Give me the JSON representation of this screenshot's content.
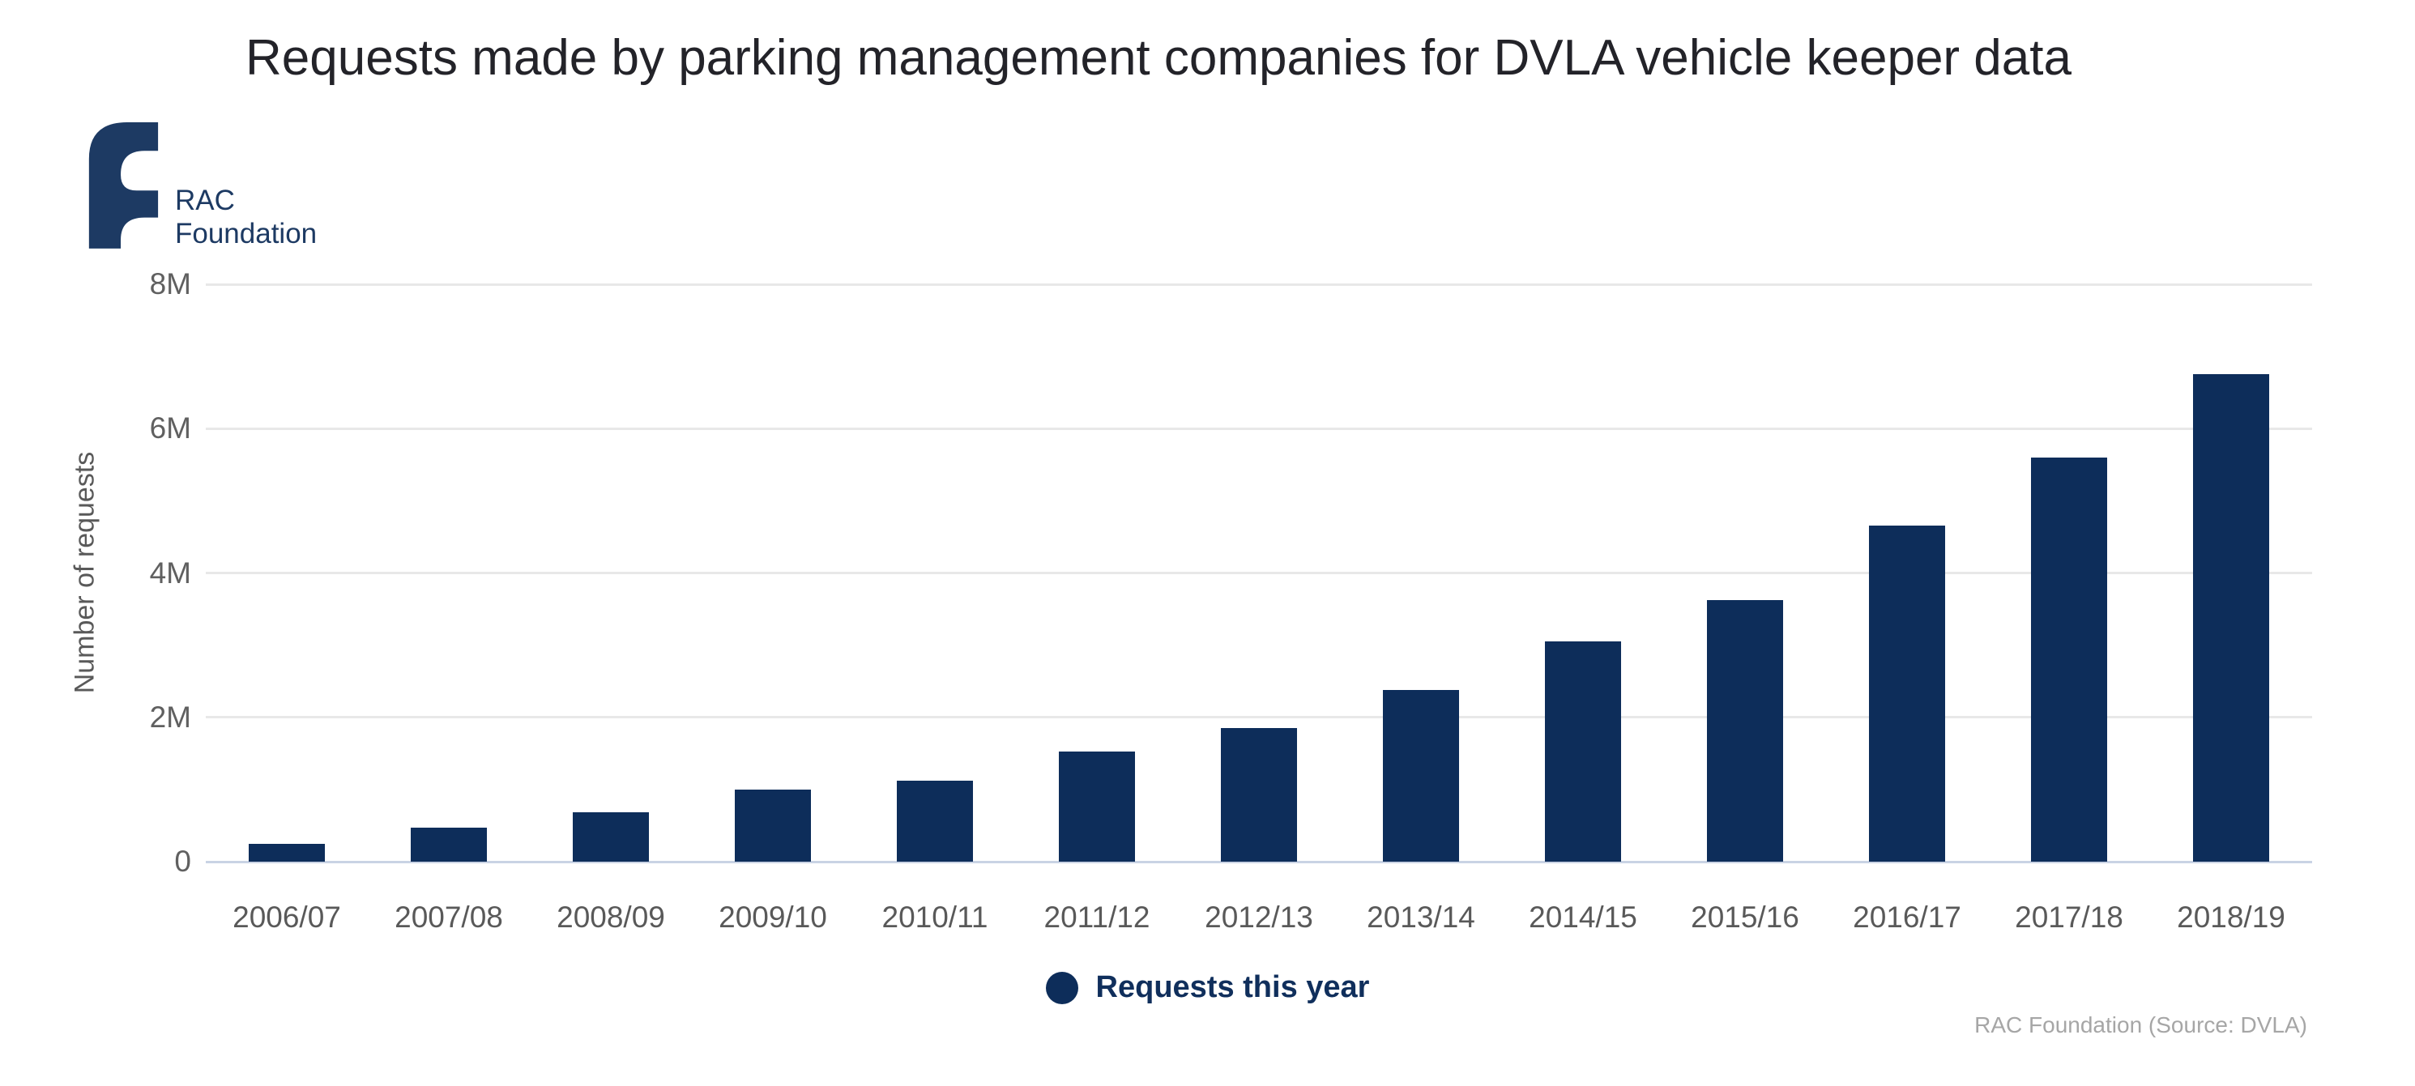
{
  "title": "Requests made by parking management companies for DVLA vehicle keeper data",
  "logo": {
    "line1": "RAC",
    "line2": "Foundation"
  },
  "legend": {
    "label": "Requests this year"
  },
  "footer": "RAC Foundation (Source: DVLA)",
  "colors": {
    "bar": "#0d2d5a",
    "logo": "#1d3a63",
    "gridline": "#e8e8e8",
    "axis_line": "#c9d3e4",
    "tick_text": "#606060",
    "category_text": "#595959",
    "legend_text": "#102f5c",
    "title_text": "#232329",
    "footer_text": "#a6a6a6"
  },
  "chart_data": {
    "type": "bar",
    "title": "Requests made by parking management companies for DVLA vehicle keeper data",
    "categories": [
      "2006/07",
      "2007/08",
      "2008/09",
      "2009/10",
      "2010/11",
      "2011/12",
      "2012/13",
      "2013/14",
      "2014/15",
      "2015/16",
      "2016/17",
      "2017/18",
      "2018/19"
    ],
    "series": [
      {
        "name": "Requests this year",
        "values": [
          250000,
          470000,
          680000,
          1000000,
          1120000,
          1530000,
          1850000,
          2380000,
          3050000,
          3620000,
          4660000,
          5600000,
          6750000
        ]
      }
    ],
    "xlabel": "",
    "ylabel": "Number of requests",
    "ylim": [
      0,
      8000000
    ],
    "yticks": [
      {
        "value": 0,
        "label": "0"
      },
      {
        "value": 2000000,
        "label": "2M"
      },
      {
        "value": 4000000,
        "label": "4M"
      },
      {
        "value": 6000000,
        "label": "6M"
      },
      {
        "value": 8000000,
        "label": "8M"
      }
    ],
    "grid": true,
    "legend_position": "bottom",
    "source_note": "RAC Foundation (Source: DVLA)"
  }
}
